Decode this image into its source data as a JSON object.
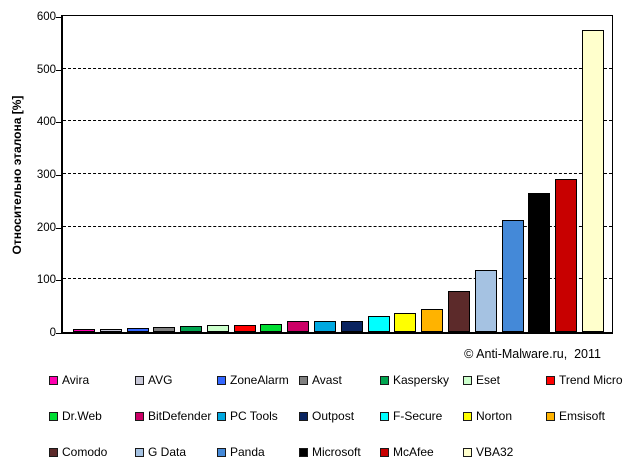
{
  "chart_data": {
    "type": "bar",
    "title": "",
    "xlabel": "",
    "ylabel": "Относительно эталона [%]",
    "ylim": [
      0,
      600
    ],
    "yticks": [
      0,
      100,
      200,
      300,
      400,
      500,
      600
    ],
    "gridlines": [
      100,
      200,
      300,
      400,
      500
    ],
    "grid_style": "horizontal dashed black",
    "legend_position": "bottom, 3 rows x 7 columns",
    "bar_outline_color": "#000000",
    "categories": [
      "Avira",
      "AVG",
      "ZoneAlarm",
      "Avast",
      "Kaspersky",
      "Eset",
      "Trend Micro",
      "Dr.Web",
      "BitDefender",
      "PC Tools",
      "Outpost",
      "F-Secure",
      "Norton",
      "Emsisoft",
      "Comodo",
      "G Data",
      "Panda",
      "Microsoft",
      "McAfee",
      "VBA32"
    ],
    "values": [
      2,
      3,
      7,
      10,
      12,
      13,
      14,
      16,
      20,
      20,
      21,
      30,
      36,
      43,
      78,
      118,
      213,
      264,
      291,
      573
    ],
    "colors": [
      "#FF00B0",
      "#C8C8D8",
      "#3366FF",
      "#808080",
      "#00A550",
      "#CCFFCC",
      "#FF0000",
      "#00DD33",
      "#CC0066",
      "#00A8E0",
      "#0A2460",
      "#00FFFF",
      "#FFFF00",
      "#FFB300",
      "#5C2A2A",
      "#A5C2E2",
      "#4489D8",
      "#000000",
      "#C80000",
      "#FFFFCC"
    ]
  },
  "annotations": {
    "copyright": "© Anti-Malware.ru,  2011"
  }
}
